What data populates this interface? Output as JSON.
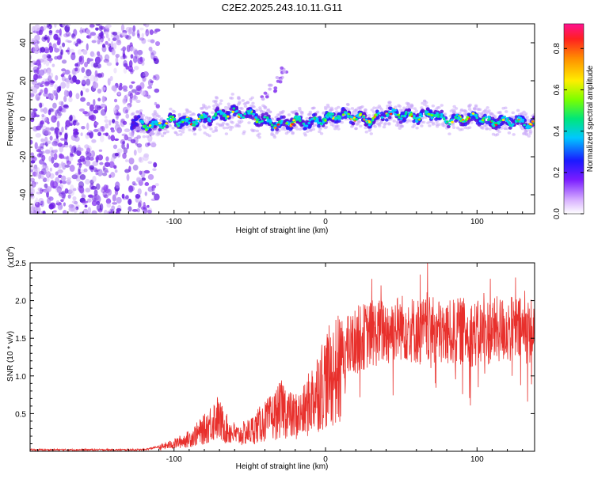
{
  "title": "C2E2.2025.243.10.11.G11",
  "chart_data": [
    {
      "type": "heatmap",
      "description_of_content": "spectrogram: frequency vs height, normalized spectral amplitude",
      "title": "C2E2.2025.243.10.11.G11",
      "xlabel": "Height of straight line (km)",
      "ylabel": "Frequency (Hz)",
      "xlim": [
        -195,
        138
      ],
      "ylim": [
        -50,
        50
      ],
      "xticks": [
        -100,
        0,
        100
      ],
      "yticks": [
        -40,
        -20,
        0,
        20,
        40
      ],
      "colorbar": {
        "label": "Normalized spectral amplitude",
        "range": [
          0,
          0.92
        ],
        "ticks": [
          0.0,
          0.2,
          0.4,
          0.6,
          0.8
        ]
      },
      "noise_region_end_km": -110,
      "signal_track": [
        [
          -125,
          -2
        ],
        [
          -115,
          -4
        ],
        [
          -100,
          -1
        ],
        [
          -90,
          -2
        ],
        [
          -80,
          0
        ],
        [
          -70,
          2
        ],
        [
          -60,
          3
        ],
        [
          -50,
          2
        ],
        [
          -40,
          -1
        ],
        [
          -30,
          -3
        ],
        [
          -20,
          -1
        ],
        [
          -10,
          -2
        ],
        [
          0,
          0
        ],
        [
          10,
          2
        ],
        [
          20,
          1
        ],
        [
          30,
          -1
        ],
        [
          40,
          3
        ],
        [
          50,
          2
        ],
        [
          60,
          1
        ],
        [
          70,
          3
        ],
        [
          80,
          -1
        ],
        [
          90,
          0
        ],
        [
          100,
          1
        ],
        [
          110,
          -2
        ],
        [
          120,
          -1
        ],
        [
          130,
          -2
        ],
        [
          138,
          -3
        ]
      ],
      "side_feature": [
        [
          -40,
          12
        ],
        [
          -35,
          16
        ],
        [
          -30,
          20
        ],
        [
          -27,
          26
        ]
      ]
    },
    {
      "type": "line",
      "xlabel": "Height of straight line (km)",
      "ylabel": "SNR (10 * v/v)",
      "y_multiplier_label": "(x10",
      "y_multiplier_exp": "4",
      "xlim": [
        -195,
        138
      ],
      "ylim": [
        0,
        2.5
      ],
      "xticks": [
        -100,
        0,
        100
      ],
      "yticks": [
        0.5,
        1.0,
        1.5,
        2.0,
        2.5
      ],
      "series": [
        {
          "color": "#e8302c",
          "envelope": [
            [
              -195,
              0.02
            ],
            [
              -120,
              0.02
            ],
            [
              -110,
              0.06
            ],
            [
              -100,
              0.12
            ],
            [
              -90,
              0.2
            ],
            [
              -80,
              0.35
            ],
            [
              -72,
              0.55
            ],
            [
              -65,
              0.35
            ],
            [
              -58,
              0.25
            ],
            [
              -50,
              0.32
            ],
            [
              -42,
              0.45
            ],
            [
              -35,
              0.55
            ],
            [
              -28,
              0.7
            ],
            [
              -22,
              0.55
            ],
            [
              -15,
              0.6
            ],
            [
              -10,
              0.8
            ],
            [
              -5,
              1.0
            ],
            [
              0,
              1.15
            ],
            [
              8,
              1.3
            ],
            [
              15,
              1.35
            ],
            [
              22,
              1.5
            ],
            [
              30,
              1.55
            ],
            [
              40,
              1.6
            ],
            [
              50,
              1.65
            ],
            [
              60,
              1.6
            ],
            [
              70,
              1.6
            ],
            [
              80,
              1.55
            ],
            [
              90,
              1.6
            ],
            [
              100,
              1.55
            ],
            [
              110,
              1.6
            ],
            [
              120,
              1.62
            ],
            [
              130,
              1.6
            ],
            [
              138,
              1.6
            ]
          ]
        }
      ]
    }
  ]
}
